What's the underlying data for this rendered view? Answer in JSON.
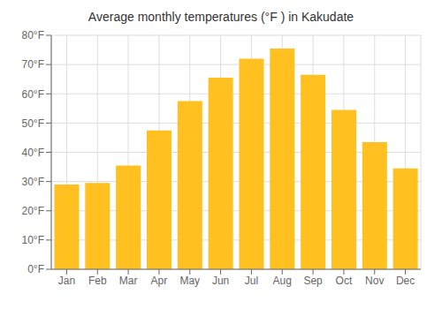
{
  "chart_data": {
    "type": "bar",
    "title": "Average monthly temperatures (°F ) in Kakudate",
    "categories": [
      "Jan",
      "Feb",
      "Mar",
      "Apr",
      "May",
      "Jun",
      "Jul",
      "Aug",
      "Sep",
      "Oct",
      "Nov",
      "Dec"
    ],
    "values": [
      29,
      29.5,
      35.5,
      47.5,
      57.5,
      65.5,
      72,
      75.5,
      66.5,
      54.5,
      43.5,
      34.5
    ],
    "color": "#FFC020",
    "ylim": [
      0,
      80
    ],
    "yticks": [
      {
        "value": 0,
        "label": "0°F"
      },
      {
        "value": 10,
        "label": "10°F"
      },
      {
        "value": 20,
        "label": "20°F"
      },
      {
        "value": 30,
        "label": "30°F"
      },
      {
        "value": 40,
        "label": "40°F"
      },
      {
        "value": 50,
        "label": "50°F"
      },
      {
        "value": 60,
        "label": "60°F"
      },
      {
        "value": 70,
        "label": "70°F"
      },
      {
        "value": 80,
        "label": "80°F"
      }
    ],
    "grid": true
  }
}
